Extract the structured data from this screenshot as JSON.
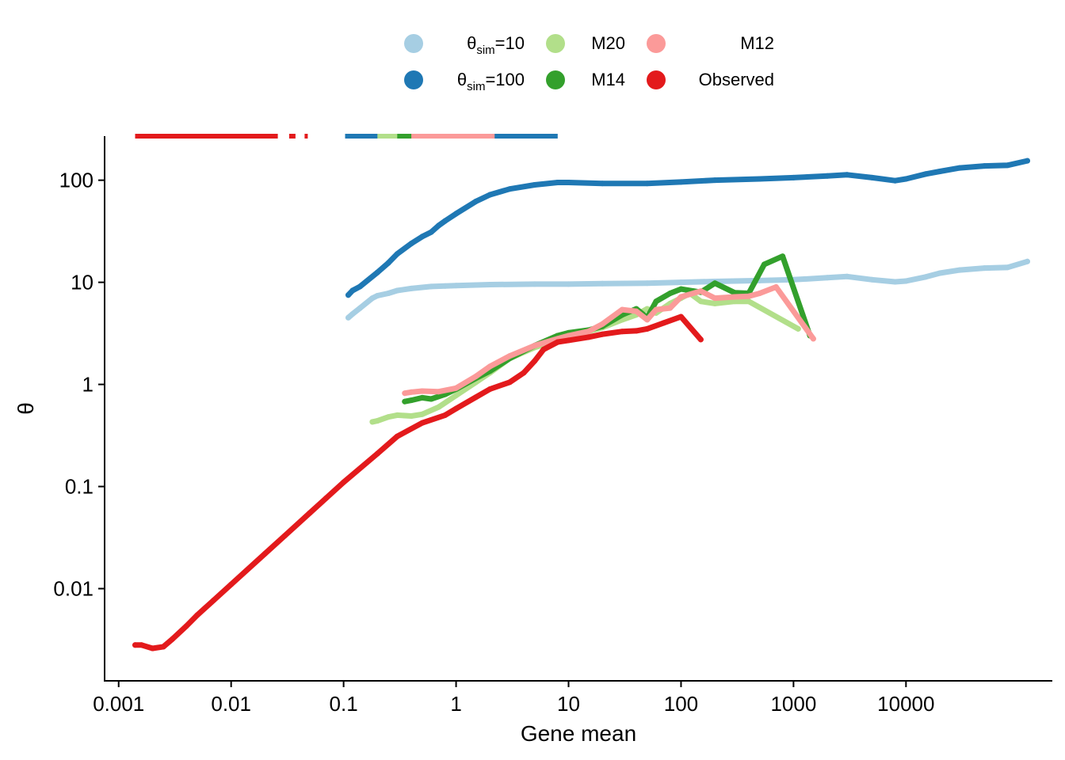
{
  "chart_data": {
    "type": "scatter",
    "xlabel": "Gene mean",
    "ylabel": "θ",
    "x_scale": "log10",
    "y_scale": "log10",
    "xlim": [
      0.00075,
      200000
    ],
    "ylim": [
      0.00125,
      270
    ],
    "x_ticks": [
      {
        "value": 0.001,
        "label": "0.001"
      },
      {
        "value": 0.01,
        "label": "0.01"
      },
      {
        "value": 0.1,
        "label": "0.1"
      },
      {
        "value": 1,
        "label": "1"
      },
      {
        "value": 10,
        "label": "10"
      },
      {
        "value": 100,
        "label": "100"
      },
      {
        "value": 1000,
        "label": "1000"
      },
      {
        "value": 10000,
        "label": "10000"
      }
    ],
    "y_ticks": [
      {
        "value": 0.01,
        "label": "0.01"
      },
      {
        "value": 0.1,
        "label": "0.1"
      },
      {
        "value": 1,
        "label": "1"
      },
      {
        "value": 10,
        "label": "10"
      },
      {
        "value": 100,
        "label": "100"
      }
    ],
    "legend": {
      "position": "top",
      "entries": [
        {
          "key": "theta10",
          "label_main": "θ",
          "label_sub": "sim",
          "label_tail": "=10",
          "color": "#a6cee3"
        },
        {
          "key": "theta100",
          "label_main": "θ",
          "label_sub": "sim",
          "label_tail": "=100",
          "color": "#1f78b4"
        },
        {
          "key": "M20",
          "label_main": "M20",
          "label_sub": "",
          "label_tail": "",
          "color": "#b2df8a"
        },
        {
          "key": "M14",
          "label_main": "M14",
          "label_sub": "",
          "label_tail": "",
          "color": "#33a02c"
        },
        {
          "key": "M12",
          "label_main": "M12",
          "label_sub": "",
          "label_tail": "",
          "color": "#fb9a99"
        },
        {
          "key": "Observed",
          "label_main": "Observed",
          "label_sub": "",
          "label_tail": "",
          "color": "#e31a1c"
        }
      ]
    },
    "series": [
      {
        "name": "θsim=10",
        "color": "#a6cee3",
        "capped": [
          [
            0.11,
            8
          ]
        ],
        "points": [
          [
            0.11,
            4.5
          ],
          [
            0.12,
            4.9
          ],
          [
            0.14,
            5.6
          ],
          [
            0.18,
            7.0
          ],
          [
            0.2,
            7.4
          ],
          [
            0.25,
            7.8
          ],
          [
            0.3,
            8.3
          ],
          [
            0.4,
            8.7
          ],
          [
            0.6,
            9.1
          ],
          [
            0.8,
            9.2
          ],
          [
            1,
            9.3
          ],
          [
            2,
            9.5
          ],
          [
            5,
            9.6
          ],
          [
            10,
            9.6
          ],
          [
            20,
            9.7
          ],
          [
            50,
            9.8
          ],
          [
            100,
            10.0
          ],
          [
            200,
            10.2
          ],
          [
            500,
            10.4
          ],
          [
            1000,
            10.6
          ],
          [
            2000,
            11.1
          ],
          [
            3000,
            11.4
          ],
          [
            5000,
            10.6
          ],
          [
            8000,
            10.1
          ],
          [
            10000,
            10.3
          ],
          [
            15000,
            11.3
          ],
          [
            20000,
            12.3
          ],
          [
            30000,
            13.2
          ],
          [
            50000,
            13.8
          ],
          [
            80000,
            14.0
          ],
          [
            120000,
            16.0
          ]
        ]
      },
      {
        "name": "θsim=100",
        "color": "#1f78b4",
        "capped": [
          [
            0.11,
            8
          ]
        ],
        "points": [
          [
            0.11,
            7.5
          ],
          [
            0.12,
            8.3
          ],
          [
            0.14,
            9.1
          ],
          [
            0.2,
            12.5
          ],
          [
            0.25,
            15.5
          ],
          [
            0.3,
            19
          ],
          [
            0.4,
            24
          ],
          [
            0.5,
            28
          ],
          [
            0.6,
            31
          ],
          [
            0.7,
            36
          ],
          [
            0.8,
            40
          ],
          [
            1,
            47
          ],
          [
            1.5,
            62
          ],
          [
            2,
            72
          ],
          [
            3,
            82
          ],
          [
            5,
            90
          ],
          [
            8,
            95
          ],
          [
            10,
            95
          ],
          [
            20,
            93
          ],
          [
            50,
            93
          ],
          [
            100,
            96
          ],
          [
            200,
            100
          ],
          [
            500,
            103
          ],
          [
            1000,
            106
          ],
          [
            2000,
            110
          ],
          [
            3000,
            113
          ],
          [
            5000,
            106
          ],
          [
            8000,
            99
          ],
          [
            10000,
            103
          ],
          [
            15000,
            115
          ],
          [
            20000,
            122
          ],
          [
            30000,
            132
          ],
          [
            50000,
            138
          ],
          [
            80000,
            140
          ],
          [
            120000,
            155
          ]
        ]
      },
      {
        "name": "M20",
        "color": "#b2df8a",
        "capped": [
          [
            0.2,
            0.45
          ]
        ],
        "points": [
          [
            0.18,
            0.43
          ],
          [
            0.2,
            0.44
          ],
          [
            0.25,
            0.48
          ],
          [
            0.3,
            0.5
          ],
          [
            0.4,
            0.49
          ],
          [
            0.5,
            0.51
          ],
          [
            0.7,
            0.6
          ],
          [
            1,
            0.78
          ],
          [
            1.5,
            1.05
          ],
          [
            2,
            1.3
          ],
          [
            3,
            1.8
          ],
          [
            5,
            2.3
          ],
          [
            8,
            2.7
          ],
          [
            10,
            2.9
          ],
          [
            15,
            3.3
          ],
          [
            20,
            3.6
          ],
          [
            30,
            4.3
          ],
          [
            40,
            4.8
          ],
          [
            50,
            5.5
          ],
          [
            60,
            5.0
          ],
          [
            80,
            6.2
          ],
          [
            100,
            7.0
          ],
          [
            120,
            7.8
          ],
          [
            150,
            6.5
          ],
          [
            200,
            6.2
          ],
          [
            300,
            6.5
          ],
          [
            400,
            6.5
          ],
          [
            1100,
            3.5
          ]
        ]
      },
      {
        "name": "M14",
        "color": "#33a02c",
        "capped": [
          [
            0.35,
            0.7
          ]
        ],
        "points": [
          [
            0.35,
            0.68
          ],
          [
            0.4,
            0.7
          ],
          [
            0.5,
            0.74
          ],
          [
            0.6,
            0.72
          ],
          [
            0.8,
            0.8
          ],
          [
            1,
            0.9
          ],
          [
            1.5,
            1.15
          ],
          [
            2,
            1.35
          ],
          [
            3,
            1.8
          ],
          [
            5,
            2.4
          ],
          [
            8,
            3.0
          ],
          [
            10,
            3.2
          ],
          [
            15,
            3.4
          ],
          [
            20,
            3.7
          ],
          [
            30,
            4.8
          ],
          [
            40,
            5.5
          ],
          [
            50,
            4.5
          ],
          [
            60,
            6.5
          ],
          [
            80,
            7.8
          ],
          [
            100,
            8.6
          ],
          [
            130,
            8.2
          ],
          [
            150,
            8.0
          ],
          [
            200,
            9.8
          ],
          [
            300,
            7.9
          ],
          [
            400,
            7.8
          ],
          [
            550,
            15
          ],
          [
            800,
            18
          ],
          [
            1400,
            3.0
          ]
        ]
      },
      {
        "name": "M12",
        "color": "#fb9a99",
        "capped": [
          [
            0.35,
            0.8
          ]
        ],
        "points": [
          [
            0.35,
            0.82
          ],
          [
            0.4,
            0.84
          ],
          [
            0.5,
            0.86
          ],
          [
            0.7,
            0.85
          ],
          [
            1,
            0.92
          ],
          [
            1.5,
            1.2
          ],
          [
            2,
            1.5
          ],
          [
            3,
            1.9
          ],
          [
            5,
            2.4
          ],
          [
            8,
            2.8
          ],
          [
            10,
            3.0
          ],
          [
            15,
            3.3
          ],
          [
            20,
            3.9
          ],
          [
            30,
            5.4
          ],
          [
            40,
            5.2
          ],
          [
            50,
            4.3
          ],
          [
            60,
            5.4
          ],
          [
            80,
            5.6
          ],
          [
            100,
            7.2
          ],
          [
            150,
            8.2
          ],
          [
            200,
            7.0
          ],
          [
            300,
            7.2
          ],
          [
            400,
            7.3
          ],
          [
            500,
            7.8
          ],
          [
            700,
            9.0
          ],
          [
            1500,
            2.8
          ]
        ]
      },
      {
        "name": "Observed",
        "color": "#e31a1c",
        "capped": [
          [
            0.0015,
            1
          ],
          [
            0.035,
            1
          ]
        ],
        "points": [
          [
            0.0014,
            0.0028
          ],
          [
            0.0016,
            0.0028
          ],
          [
            0.002,
            0.0026
          ],
          [
            0.0025,
            0.0027
          ],
          [
            0.003,
            0.0032
          ],
          [
            0.004,
            0.0043
          ],
          [
            0.005,
            0.0055
          ],
          [
            0.007,
            0.0077
          ],
          [
            0.01,
            0.011
          ],
          [
            0.02,
            0.022
          ],
          [
            0.03,
            0.033
          ],
          [
            0.05,
            0.055
          ],
          [
            0.07,
            0.077
          ],
          [
            0.1,
            0.11
          ],
          [
            0.2,
            0.21
          ],
          [
            0.3,
            0.31
          ],
          [
            0.5,
            0.42
          ],
          [
            0.8,
            0.5
          ],
          [
            1,
            0.58
          ],
          [
            1.5,
            0.75
          ],
          [
            2,
            0.9
          ],
          [
            3,
            1.05
          ],
          [
            4,
            1.3
          ],
          [
            5,
            1.7
          ],
          [
            6,
            2.2
          ],
          [
            8,
            2.6
          ],
          [
            10,
            2.7
          ],
          [
            15,
            2.9
          ],
          [
            20,
            3.1
          ],
          [
            30,
            3.3
          ],
          [
            40,
            3.35
          ],
          [
            50,
            3.5
          ],
          [
            70,
            4.0
          ],
          [
            100,
            4.6
          ],
          [
            150,
            2.75
          ]
        ]
      }
    ]
  }
}
